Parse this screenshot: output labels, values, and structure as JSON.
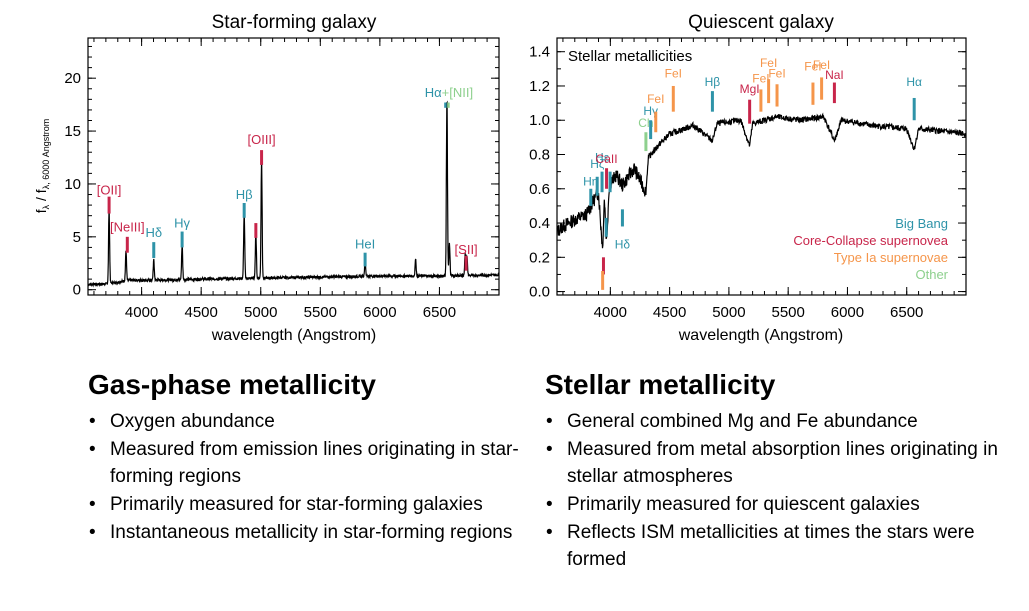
{
  "chart_data": [
    {
      "type": "line",
      "title": "Star-forming galaxy",
      "xlabel": "wavelength (Angstrom)",
      "ylabel": "f",
      "ylabel_sub1": "λ",
      "ylabel_mid": " / f",
      "ylabel_sub2": "λ, 6000 Angstrom",
      "xlim": [
        3550,
        7000
      ],
      "ylim": [
        -0.5,
        23.8
      ],
      "xticks": [
        4000,
        4500,
        5000,
        5500,
        6000,
        6500
      ],
      "yticks": [
        0,
        5,
        10,
        15,
        20
      ],
      "continuum": [
        [
          3550,
          0.5
        ],
        [
          3700,
          0.55
        ],
        [
          3900,
          0.9
        ],
        [
          4100,
          0.9
        ],
        [
          4500,
          1.0
        ],
        [
          5000,
          1.1
        ],
        [
          5500,
          1.2
        ],
        [
          6000,
          1.3
        ],
        [
          6500,
          1.3
        ],
        [
          7000,
          1.4
        ]
      ],
      "emission_lines": [
        {
          "x": 3727,
          "y": 7.0
        },
        {
          "x": 3869,
          "y": 2.8
        },
        {
          "x": 4102,
          "y": 1.9
        },
        {
          "x": 4340,
          "y": 3.2
        },
        {
          "x": 4861,
          "y": 6.2
        },
        {
          "x": 4959,
          "y": 4.2
        },
        {
          "x": 5007,
          "y": 11.2
        },
        {
          "x": 5876,
          "y": 1.5
        },
        {
          "x": 6300,
          "y": 1.6
        },
        {
          "x": 6563,
          "y": 16.8
        },
        {
          "x": 6584,
          "y": 3.0
        },
        {
          "x": 6716,
          "y": 2.0
        },
        {
          "x": 6731,
          "y": 1.8
        }
      ],
      "annotations": [
        {
          "text": "[OII]",
          "x": 3727,
          "label_y": 9.0,
          "color": "#c8254a",
          "tick_low": 7.2,
          "tick_high": 8.8
        },
        {
          "text": "[NeIII]",
          "x": 3880,
          "label_y": 5.5,
          "color": "#c8254a",
          "tick_low": 3.5,
          "tick_high": 5.0
        },
        {
          "text": "Hδ",
          "x": 4102,
          "label_y": 5.0,
          "color": "#2e93a8",
          "tick_low": 3.0,
          "tick_high": 4.5
        },
        {
          "text": "Hγ",
          "x": 4340,
          "label_y": 5.9,
          "color": "#2e93a8",
          "tick_low": 4.0,
          "tick_high": 5.5
        },
        {
          "text": "Hβ",
          "x": 4861,
          "label_y": 8.6,
          "color": "#2e93a8",
          "tick_low": 6.8,
          "tick_high": 8.2
        },
        {
          "text": "",
          "x": 4959,
          "label_y": 6.0,
          "color": "#c8254a",
          "tick_low": 4.9,
          "tick_high": 6.3
        },
        {
          "text": "[OIII]",
          "x": 5007,
          "label_y": 13.8,
          "color": "#c8254a",
          "tick_low": 11.8,
          "tick_high": 13.2
        },
        {
          "text": "HeI",
          "x": 5876,
          "label_y": 3.9,
          "color": "#2e93a8",
          "tick_low": 2.2,
          "tick_high": 3.5
        },
        {
          "text": "[SII]",
          "x": 6724,
          "label_y": 3.4,
          "color": "#c8254a",
          "tick_low": 1.8,
          "tick_high": 3.2
        }
      ],
      "halpha_label": {
        "text_a": "Hα",
        "text_b": "+[NII]",
        "x": 6563,
        "label_y": 18.6,
        "color_a": "#2e93a8",
        "color_b": "#8ed08e"
      }
    },
    {
      "type": "line",
      "title": "Quiescent galaxy",
      "inset_label": "Stellar metallicities",
      "xlabel": "wavelength (Angstrom)",
      "xlim": [
        3550,
        7000
      ],
      "ylim": [
        -0.02,
        1.48
      ],
      "xticks": [
        4000,
        4500,
        5000,
        5500,
        6000,
        6500
      ],
      "yticks": [
        0.0,
        0.2,
        0.4,
        0.6,
        0.8,
        1.0,
        1.2,
        1.4
      ],
      "ytick_labels": [
        "0.0",
        "0.2",
        "0.4",
        "0.6",
        "0.8",
        "1.0",
        "1.2",
        "1.4"
      ],
      "spectrum_anchors": [
        [
          3550,
          0.35
        ],
        [
          3600,
          0.38
        ],
        [
          3700,
          0.42
        ],
        [
          3800,
          0.45
        ],
        [
          3850,
          0.52
        ],
        [
          3900,
          0.58
        ],
        [
          3934,
          0.25
        ],
        [
          3950,
          0.55
        ],
        [
          3968,
          0.28
        ],
        [
          3990,
          0.62
        ],
        [
          4050,
          0.68
        ],
        [
          4102,
          0.62
        ],
        [
          4200,
          0.72
        ],
        [
          4300,
          0.58
        ],
        [
          4320,
          0.78
        ],
        [
          4400,
          0.85
        ],
        [
          4500,
          0.92
        ],
        [
          4700,
          0.97
        ],
        [
          4861,
          0.88
        ],
        [
          4900,
          0.98
        ],
        [
          5100,
          1.0
        ],
        [
          5175,
          0.85
        ],
        [
          5200,
          0.98
        ],
        [
          5400,
          1.02
        ],
        [
          5600,
          1.0
        ],
        [
          5800,
          1.02
        ],
        [
          5890,
          0.88
        ],
        [
          5950,
          1.0
        ],
        [
          6200,
          0.97
        ],
        [
          6500,
          0.95
        ],
        [
          6563,
          0.83
        ],
        [
          6600,
          0.95
        ],
        [
          7000,
          0.92
        ]
      ],
      "annotations": [
        {
          "text": "Hη",
          "x": 3835,
          "label_y": 0.62,
          "color": "#2e93a8",
          "tick_low": 0.5,
          "tick_high": 0.6
        },
        {
          "text": "Hζ",
          "x": 3889,
          "label_y": 0.72,
          "color": "#2e93a8",
          "tick_low": 0.56,
          "tick_high": 0.67
        },
        {
          "text": "Hε",
          "x": 3930,
          "label_y": 0.76,
          "color": "#2e93a8",
          "tick_low": 0.58,
          "tick_high": 0.7
        },
        {
          "text": "CaII",
          "x": 3968,
          "label_y": 0.75,
          "color": "#c8254a",
          "tick_low": 0.6,
          "tick_high": 0.72
        },
        {
          "text": "Ch",
          "x": 4300,
          "label_y": 0.96,
          "color": "#8ed08e",
          "tick_low": 0.82,
          "tick_high": 0.93
        },
        {
          "text": "Hγ",
          "x": 4340,
          "label_y": 1.03,
          "color": "#2e93a8",
          "tick_low": 0.89,
          "tick_high": 1.0
        },
        {
          "text": "FeI",
          "x": 4383,
          "label_y": 1.1,
          "color": "#f5954a",
          "tick_low": 0.93,
          "tick_high": 1.05
        },
        {
          "text": "FeI",
          "x": 4531,
          "label_y": 1.25,
          "color": "#f5954a",
          "tick_low": 1.05,
          "tick_high": 1.2
        },
        {
          "text": "Hβ",
          "x": 4861,
          "label_y": 1.2,
          "color": "#2e93a8",
          "tick_low": 1.05,
          "tick_high": 1.17
        },
        {
          "text": "MgI",
          "x": 5175,
          "label_y": 1.16,
          "color": "#c8254a",
          "tick_low": 0.98,
          "tick_high": 1.12
        },
        {
          "text": "FeI",
          "x": 5270,
          "label_y": 1.22,
          "color": "#f5954a",
          "tick_low": 1.05,
          "tick_high": 1.18
        },
        {
          "text": "FeI",
          "x": 5335,
          "label_y": 1.31,
          "color": "#f5954a",
          "tick_low": 1.1,
          "tick_high": 1.24
        },
        {
          "text": "FeI",
          "x": 5406,
          "label_y": 1.25,
          "color": "#f5954a",
          "tick_low": 1.08,
          "tick_high": 1.21
        },
        {
          "text": "FeI",
          "x": 5709,
          "label_y": 1.29,
          "color": "#f5954a",
          "tick_low": 1.09,
          "tick_high": 1.22
        },
        {
          "text": "FeI",
          "x": 5782,
          "label_y": 1.3,
          "color": "#f5954a",
          "tick_low": 1.12,
          "tick_high": 1.25
        },
        {
          "text": "NaI",
          "x": 5890,
          "label_y": 1.24,
          "color": "#c8254a",
          "tick_low": 1.1,
          "tick_high": 1.22
        },
        {
          "text": "Hα",
          "x": 6563,
          "label_y": 1.2,
          "color": "#2e93a8",
          "tick_low": 1.0,
          "tick_high": 1.13
        }
      ],
      "extra_ticks": [
        {
          "x": 3965,
          "y_low": 0.32,
          "y_high": 0.43,
          "color": "#2e93a8"
        },
        {
          "x": 3998,
          "y_low": 0.58,
          "y_high": 0.7,
          "color": "#2e93a8"
        },
        {
          "x": 3942,
          "y_low": 0.1,
          "y_high": 0.2,
          "color": "#c8254a"
        },
        {
          "x": 3935,
          "y_low": 0.01,
          "y_high": 0.12,
          "color": "#f5954a"
        }
      ],
      "below_label": {
        "text": "Hδ",
        "x": 4102,
        "label_y": 0.25,
        "tick_low": 0.38,
        "tick_high": 0.48,
        "color": "#2e93a8"
      },
      "legend": {
        "position": "lower-right",
        "entries": [
          {
            "text": "Big Bang",
            "color": "#2e93a8"
          },
          {
            "text": "Core-Collapse supernovea",
            "color": "#c8254a"
          },
          {
            "text": "Type Ia supernovae",
            "color": "#f5954a"
          },
          {
            "text": "Other",
            "color": "#8ed08e"
          }
        ]
      }
    }
  ],
  "sections": {
    "gas": {
      "heading": "Gas-phase metallicity",
      "bullets": [
        "Oxygen abundance",
        "Measured from emission lines originating in star-forming regions",
        "Primarily measured for star-forming galaxies",
        "Instantaneous metallicity in star-forming regions"
      ]
    },
    "stellar": {
      "heading": "Stellar metallicity",
      "bullets": [
        "General combined Mg and Fe abundance",
        "Measured from metal absorption lines originating in stellar atmospheres",
        "Primarily measured for quiescent galaxies",
        "Reflects ISM metallicities at times the stars were formed"
      ]
    }
  },
  "bullet_char": "•"
}
